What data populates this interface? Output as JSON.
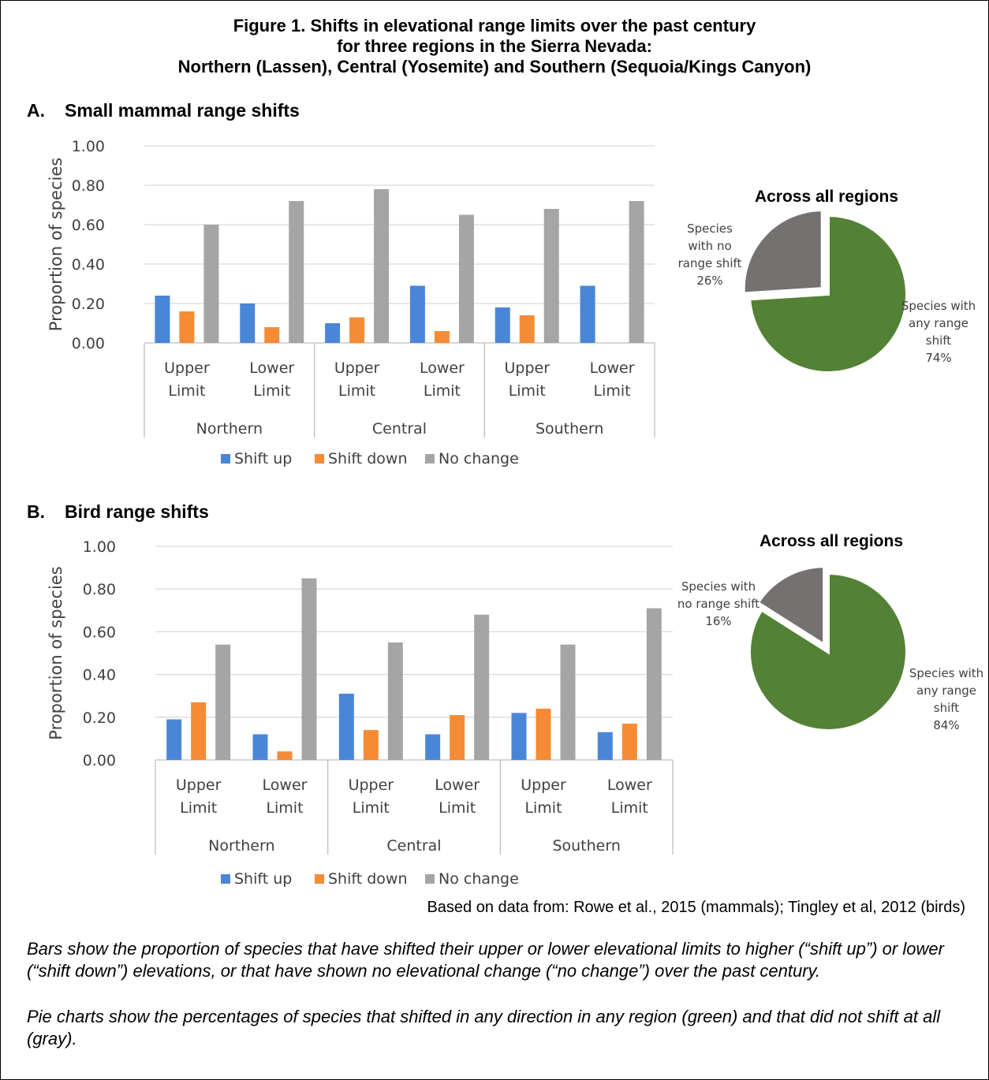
{
  "figure": {
    "title_lines": [
      "Figure 1. Shifts in elevational range limits over the past century",
      "for three regions in the Sierra Nevada:",
      "Northern (Lassen), Central (Yosemite) and Southern (Sequoia/Kings Canyon)"
    ],
    "source": "Based on data from: Rowe et al., 2015 (mammals); Tingley et al, 2012 (birds)",
    "notes": [
      "Bars show the proportion of species that have shifted their upper or lower elevational limits to higher (“shift up”) or lower (“shift down”) elevations, or that have shown no elevational change (“no change”) over the past century.",
      "Pie charts show the percentages of species that shifted in any direction in any region (green) and that did not shift at all (gray)."
    ]
  },
  "sections": [
    {
      "letter": "A.",
      "title": "Small mammal range shifts"
    },
    {
      "letter": "B.",
      "title": "Bird range shifts"
    }
  ],
  "colors": {
    "shift_up": "#4a86d8",
    "shift_down": "#f58b35",
    "no_change": "#a5a5a5",
    "pie_shift": "#538135",
    "pie_none": "#767171",
    "grid": "#d9d9d9"
  },
  "chart_data": [
    {
      "type": "bar",
      "title": "",
      "ylabel": "Proportion of species",
      "ylim": [
        0,
        1
      ],
      "yticks": [
        "0.00",
        "0.20",
        "0.40",
        "0.60",
        "0.80",
        "1.00"
      ],
      "groups": [
        "Northern",
        "Central",
        "Southern"
      ],
      "categories": [
        "Upper Limit",
        "Lower Limit",
        "Upper Limit",
        "Lower Limit",
        "Upper Limit",
        "Lower Limit"
      ],
      "legend": "bottom",
      "series": [
        {
          "name": "Shift up",
          "values": [
            0.24,
            0.2,
            0.1,
            0.29,
            0.18,
            0.29
          ]
        },
        {
          "name": "Shift down",
          "values": [
            0.16,
            0.08,
            0.13,
            0.06,
            0.14,
            0.0
          ]
        },
        {
          "name": "No change",
          "values": [
            0.6,
            0.72,
            0.78,
            0.65,
            0.68,
            0.72
          ]
        }
      ]
    },
    {
      "type": "pie",
      "title": "Across all regions",
      "slices": [
        {
          "label_lines": [
            "Species with",
            "any range",
            "shift",
            "74%"
          ],
          "value": 74
        },
        {
          "label_lines": [
            "Species",
            "with no",
            "range shift",
            "26%"
          ],
          "value": 26
        }
      ]
    },
    {
      "type": "bar",
      "title": "",
      "ylabel": "Proportion of species",
      "ylim": [
        0,
        1
      ],
      "yticks": [
        "0.00",
        "0.20",
        "0.40",
        "0.60",
        "0.80",
        "1.00"
      ],
      "groups": [
        "Northern",
        "Central",
        "Southern"
      ],
      "categories": [
        "Upper Limit",
        "Lower Limit",
        "Upper Limit",
        "Lower Limit",
        "Upper Limit",
        "Lower Limit"
      ],
      "legend": "bottom",
      "series": [
        {
          "name": "Shift up",
          "values": [
            0.19,
            0.12,
            0.31,
            0.12,
            0.22,
            0.13
          ]
        },
        {
          "name": "Shift down",
          "values": [
            0.27,
            0.04,
            0.14,
            0.21,
            0.24,
            0.17
          ]
        },
        {
          "name": "No change",
          "values": [
            0.54,
            0.85,
            0.55,
            0.68,
            0.54,
            0.71
          ]
        }
      ]
    },
    {
      "type": "pie",
      "title": "Across all regions",
      "slices": [
        {
          "label_lines": [
            "Species with",
            "any range",
            "shift",
            "84%"
          ],
          "value": 84
        },
        {
          "label_lines": [
            "Species with",
            "no range shift",
            "16%"
          ],
          "value": 16
        }
      ]
    }
  ]
}
